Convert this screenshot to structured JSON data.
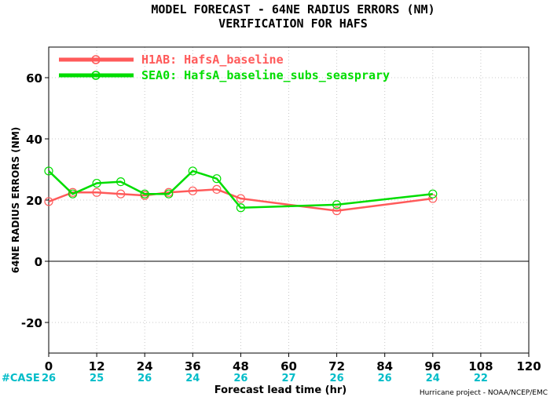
{
  "chart_data": {
    "type": "line",
    "title": "MODEL FORECAST - 64NE RADIUS ERRORS (NM)",
    "subtitle": "VERIFICATION FOR HAFS",
    "xlabel": "Forecast lead time (hr)",
    "ylabel": "64NE RADIUS ERRORS (NM)",
    "xlim": [
      0,
      120
    ],
    "ylim": [
      -30,
      70
    ],
    "xticks": [
      0,
      12,
      24,
      36,
      48,
      60,
      72,
      84,
      96,
      108,
      120
    ],
    "yticks": [
      -20,
      0,
      20,
      40,
      60
    ],
    "grid": true,
    "legend_position": "top-left",
    "series": [
      {
        "name": "H1AB: HafsA_baseline",
        "color": "#ff5a5a",
        "x": [
          0,
          6,
          12,
          18,
          24,
          30,
          36,
          42,
          48,
          72,
          96
        ],
        "y": [
          19.5,
          22.5,
          22.5,
          22,
          21.5,
          22.5,
          23,
          23.5,
          20.5,
          16.5,
          20.5
        ]
      },
      {
        "name": "SEA0: HafsA_baseline_subs_seasprary",
        "color": "#00dd00",
        "x": [
          0,
          6,
          12,
          18,
          24,
          30,
          36,
          42,
          48,
          72,
          96
        ],
        "y": [
          29.5,
          22,
          25.5,
          26,
          22,
          22,
          29.5,
          27,
          17.5,
          18.5,
          22
        ]
      }
    ],
    "case_counts": {
      "label": "#CASE",
      "color": "#00bcc8",
      "x": [
        0,
        12,
        24,
        36,
        48,
        60,
        72,
        84,
        96,
        108
      ],
      "values": [
        "26",
        "25",
        "26",
        "24",
        "26",
        "27",
        "26",
        "26",
        "24",
        "22"
      ]
    },
    "credit": "Hurricane project - NOAA/NCEP/EMC"
  }
}
